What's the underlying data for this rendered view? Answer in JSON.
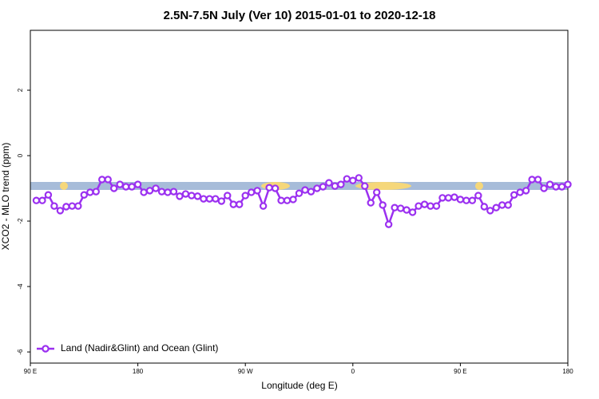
{
  "chart_data": {
    "type": "line",
    "title": "2.5N-7.5N July (Ver 10)   2015-01-01 to 2020-12-18",
    "xlabel": "Longitude (deg E)",
    "ylabel": "XCO2 - MLO trend (ppm)",
    "x": [
      95,
      100,
      105,
      110,
      115,
      120,
      125,
      130,
      135,
      140,
      145,
      150,
      155,
      160,
      165,
      170,
      175,
      180,
      185,
      190,
      195,
      200,
      205,
      210,
      215,
      220,
      225,
      230,
      235,
      240,
      245,
      250,
      255,
      260,
      265,
      270,
      275,
      280,
      285,
      290,
      295,
      300,
      305,
      310,
      315,
      320,
      325,
      330,
      335,
      340,
      345,
      350,
      355,
      360,
      365,
      370,
      375,
      380,
      385,
      390,
      395,
      400,
      405,
      410,
      415,
      420,
      425,
      430,
      435,
      440,
      445,
      450,
      455,
      460,
      465,
      470,
      475,
      480,
      485,
      490,
      495,
      500,
      505,
      510,
      515,
      520,
      525,
      530,
      535,
      540
    ],
    "series": [
      {
        "name": "Land (Nadir&Glint) and Ocean (Glint)",
        "color": "#9b30f0",
        "values": [
          -1.37,
          -1.37,
          -1.2,
          -1.54,
          -1.68,
          -1.56,
          -1.54,
          -1.54,
          -1.2,
          -1.12,
          -1.1,
          -0.73,
          -0.73,
          -1.0,
          -0.88,
          -0.95,
          -0.95,
          -0.88,
          -1.12,
          -1.07,
          -1.0,
          -1.1,
          -1.12,
          -1.1,
          -1.24,
          -1.17,
          -1.22,
          -1.24,
          -1.32,
          -1.32,
          -1.32,
          -1.39,
          -1.22,
          -1.49,
          -1.49,
          -1.22,
          -1.12,
          -1.07,
          -1.54,
          -0.98,
          -1.0,
          -1.37,
          -1.37,
          -1.34,
          -1.15,
          -1.05,
          -1.1,
          -1.0,
          -0.95,
          -0.83,
          -0.93,
          -0.88,
          -0.71,
          -0.76,
          -0.68,
          -0.93,
          -1.44,
          -1.12,
          -1.51,
          -2.1,
          -1.59,
          -1.61,
          -1.66,
          -1.73,
          -1.54,
          -1.49,
          -1.54,
          -1.54,
          -1.29,
          -1.29,
          -1.27,
          -1.34,
          -1.37,
          -1.37,
          -1.22,
          -1.56,
          -1.68,
          -1.59,
          -1.51,
          -1.51,
          -1.2,
          -1.12,
          -1.07,
          -0.73,
          -0.73,
          -1.0,
          -0.88,
          -0.95,
          -0.95,
          -0.88
        ]
      }
    ],
    "xlim": [
      90,
      540
    ],
    "xticks": [
      {
        "value": 90,
        "label": "90 E"
      },
      {
        "value": 180,
        "label": "180"
      },
      {
        "value": 270,
        "label": "90 W"
      },
      {
        "value": 360,
        "label": "0"
      },
      {
        "value": 450,
        "label": "90 E"
      },
      {
        "value": 540,
        "label": "180"
      }
    ],
    "ylim": [
      -6.34,
      3.83
    ],
    "yticks": [
      -6,
      -4,
      -2,
      0,
      2
    ],
    "legend": "bottom-left"
  }
}
